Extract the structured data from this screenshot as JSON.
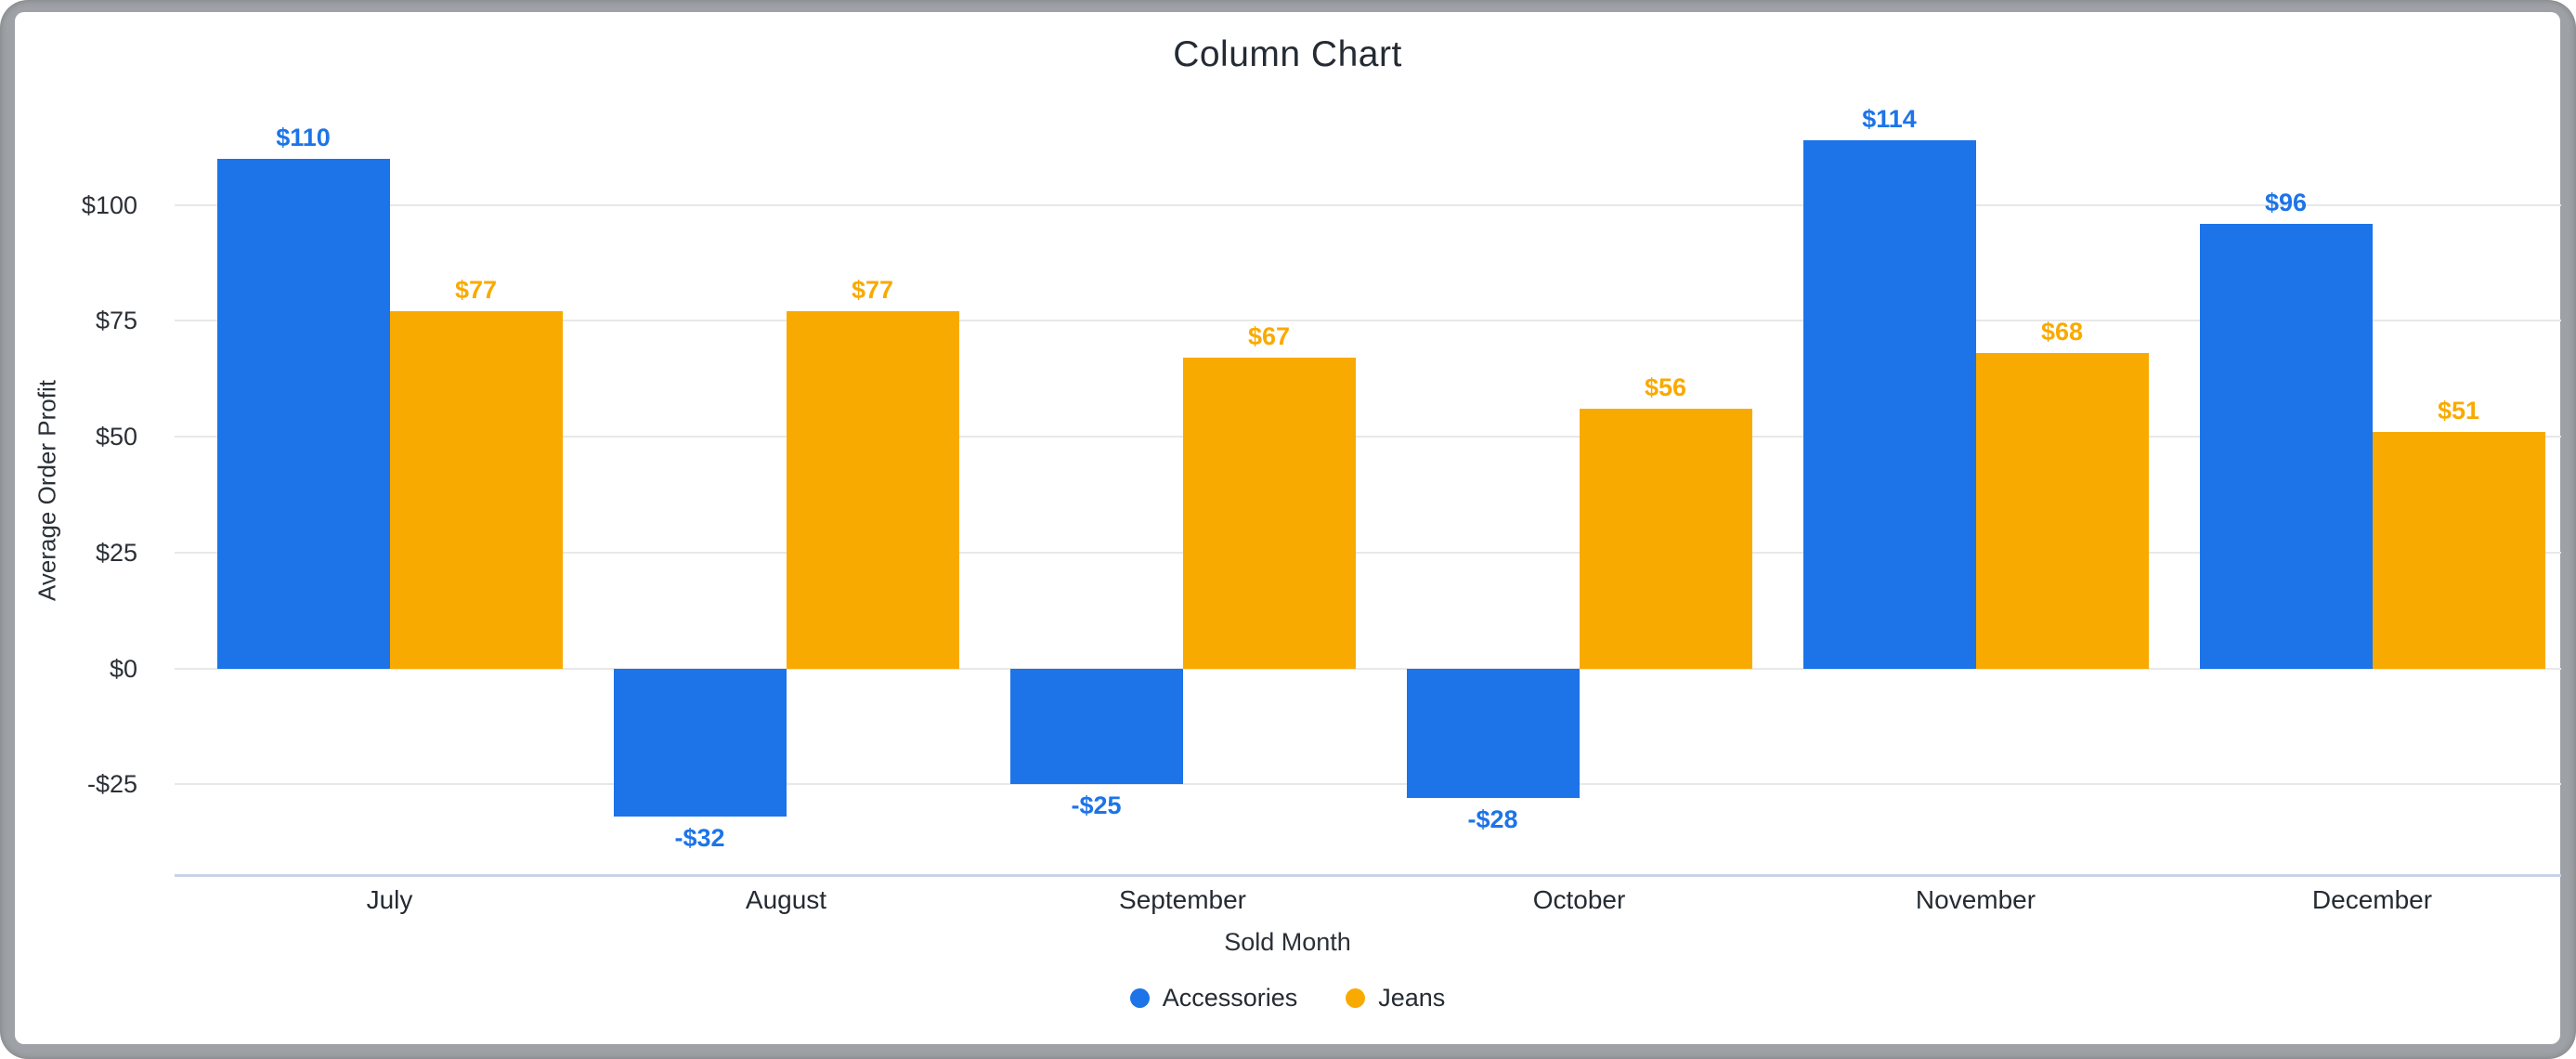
{
  "window": {
    "frame_color": "#9EA1A5",
    "card_background": "#FFFFFF"
  },
  "chart_data": {
    "type": "bar",
    "title": "Column Chart",
    "xlabel": "Sold Month",
    "ylabel": "Average Order Profit",
    "categories": [
      "July",
      "August",
      "September",
      "October",
      "November",
      "December"
    ],
    "series": [
      {
        "name": "Accessories",
        "color": "#1C74E8",
        "values": [
          110,
          -32,
          -25,
          -28,
          114,
          96
        ],
        "value_labels": [
          "$110",
          "-$32",
          "-$25",
          "-$28",
          "$114",
          "$96"
        ]
      },
      {
        "name": "Jeans",
        "color": "#F9AA00",
        "values": [
          77,
          77,
          67,
          56,
          68,
          51
        ],
        "value_labels": [
          "$77",
          "$77",
          "$67",
          "$56",
          "$68",
          "$51"
        ]
      }
    ],
    "y_ticks": [
      {
        "value": 100,
        "label": "$100"
      },
      {
        "value": 75,
        "label": "$75"
      },
      {
        "value": 50,
        "label": "$50"
      },
      {
        "value": 25,
        "label": "$25"
      },
      {
        "value": 0,
        "label": "$0"
      },
      {
        "value": -25,
        "label": "-$25"
      }
    ],
    "ylim": [
      -44.4,
      117.6
    ],
    "grid": true,
    "gridline_color": "#E8E8E8",
    "axis_line_color": "#C8D3EA",
    "legend_position": "bottom"
  }
}
